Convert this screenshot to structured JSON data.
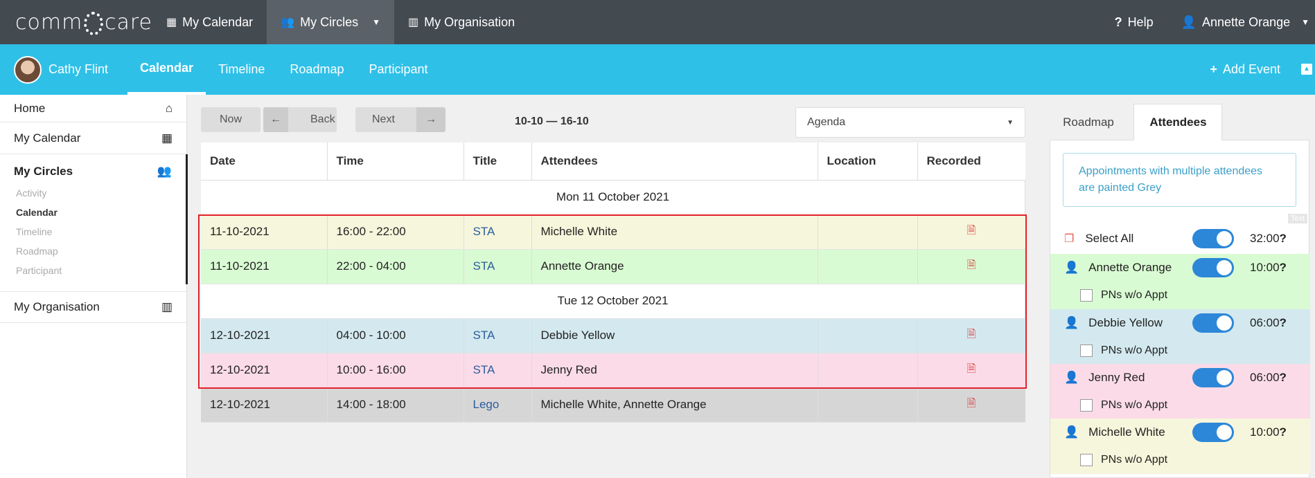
{
  "topbar": {
    "logo": "comm care",
    "nav": [
      {
        "icon": "calendar-icon",
        "label": "My Calendar"
      },
      {
        "icon": "users-icon",
        "label": "My Circles"
      },
      {
        "icon": "building-icon",
        "label": "My Organisation"
      }
    ],
    "help": "Help",
    "user": "Annette Orange"
  },
  "subbar": {
    "participant": "Cathy Flint",
    "tabs": [
      "Calendar",
      "Timeline",
      "Roadmap",
      "Participant"
    ],
    "add_event": "Add Event"
  },
  "sidebar": {
    "home": "Home",
    "my_calendar": "My Calendar",
    "my_circles": "My Circles",
    "circles_sub": [
      "Activity",
      "Calendar",
      "Timeline",
      "Roadmap",
      "Participant"
    ],
    "my_organisation": "My Organisation"
  },
  "toolbar": {
    "now": "Now",
    "back": "Back",
    "next": "Next",
    "range": "10-10 — 16-10",
    "view": "Agenda"
  },
  "table": {
    "headers": [
      "Date",
      "Time",
      "Title",
      "Attendees",
      "Location",
      "Recorded"
    ],
    "groups": [
      "Mon 11 October 2021",
      "Tue 12 October 2021"
    ],
    "rows": [
      {
        "date": "11-10-2021",
        "time": "16:00 - 22:00",
        "title": "STA",
        "attendees": "Michelle White",
        "location": "",
        "color": "#f6f6dc"
      },
      {
        "date": "11-10-2021",
        "time": "22:00 - 04:00",
        "title": "STA",
        "attendees": "Annette Orange",
        "location": "",
        "color": "#d9fbd3"
      },
      {
        "date": "12-10-2021",
        "time": "04:00 - 10:00",
        "title": "STA",
        "attendees": "Debbie Yellow",
        "location": "",
        "color": "#d3e9ef"
      },
      {
        "date": "12-10-2021",
        "time": "10:00 - 16:00",
        "title": "STA",
        "attendees": "Jenny Red",
        "location": "",
        "color": "#fbdbe8"
      },
      {
        "date": "12-10-2021",
        "time": "14:00 - 18:00",
        "title": "Lego",
        "attendees": "Michelle White, Annette Orange",
        "location": "",
        "color": "#d6d6d6"
      }
    ]
  },
  "right_panel": {
    "tabs": [
      "Roadmap",
      "Attendees"
    ],
    "info": "Appointments with multiple attendees are painted Grey",
    "tooltip": "Text",
    "select_all": {
      "label": "Select All",
      "hours": "32:00"
    },
    "attendees": [
      {
        "name": "Annette Orange",
        "hours": "10:00",
        "pns": "PNs w/o Appt",
        "color": "#d9fbd3"
      },
      {
        "name": "Debbie Yellow",
        "hours": "06:00",
        "pns": "PNs w/o Appt",
        "color": "#d3e9ef"
      },
      {
        "name": "Jenny Red",
        "hours": "06:00",
        "pns": "PNs w/o Appt",
        "color": "#fbdbe8"
      },
      {
        "name": "Michelle White",
        "hours": "10:00",
        "pns": "PNs w/o Appt",
        "color": "#f6f6dc"
      }
    ]
  }
}
